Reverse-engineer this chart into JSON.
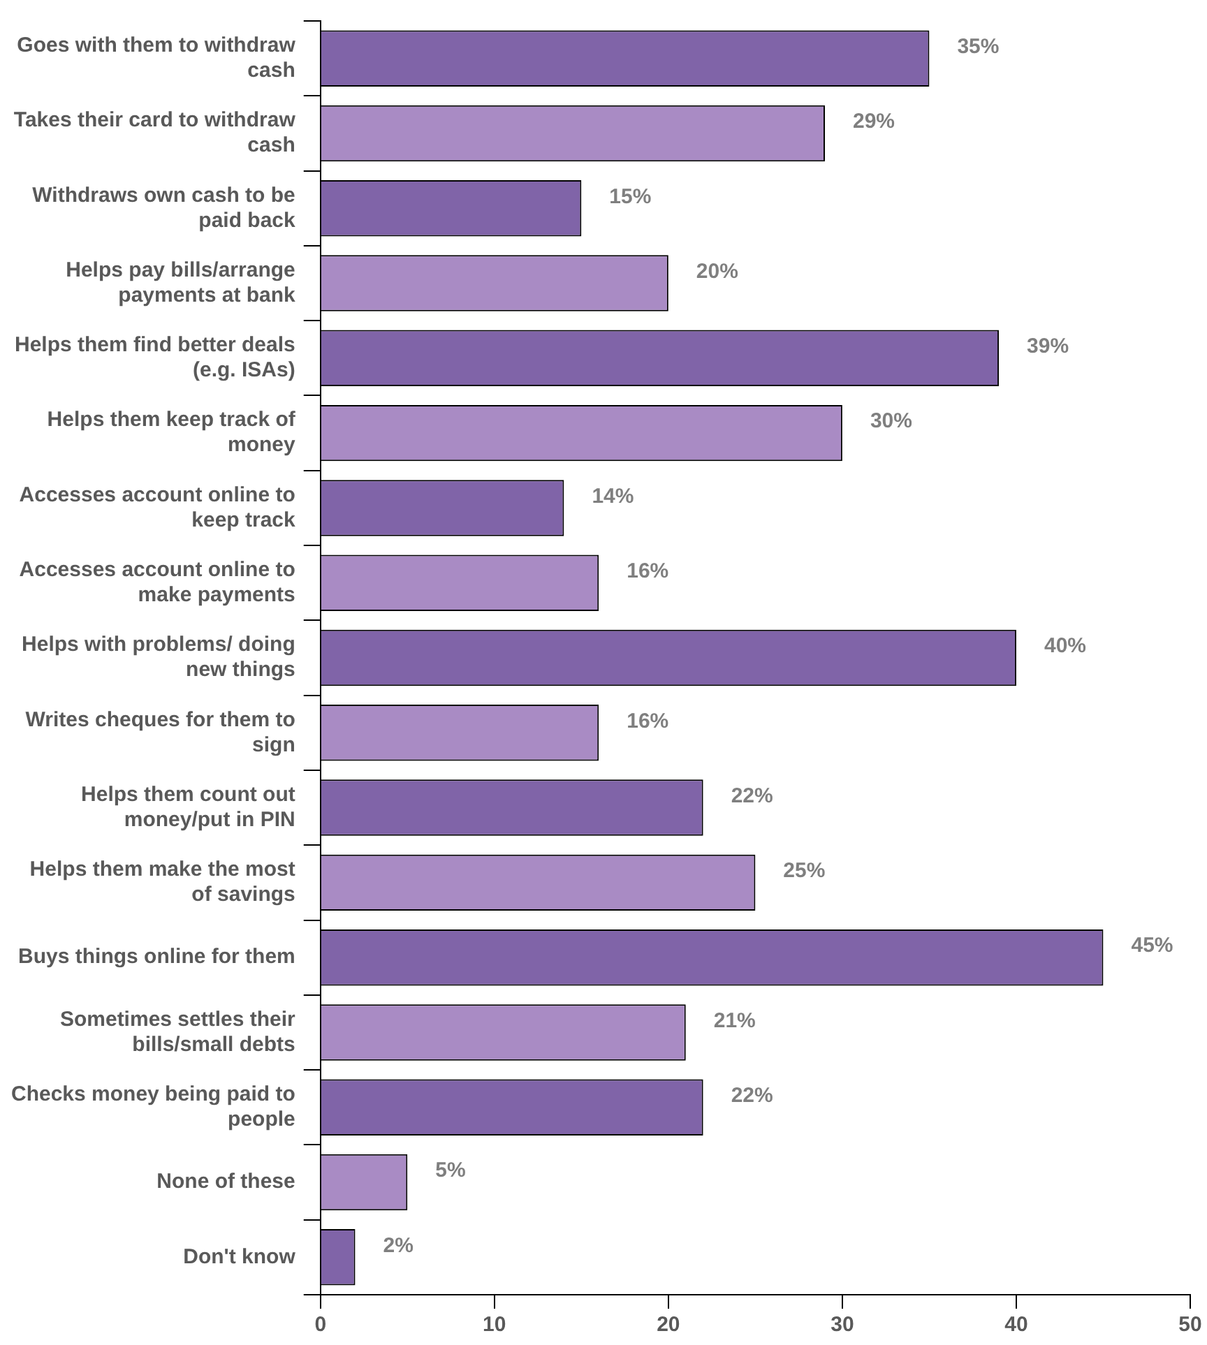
{
  "chart_data": {
    "type": "bar",
    "orientation": "horizontal",
    "categories": [
      "Goes with them to withdraw cash",
      "Takes their card to withdraw cash",
      "Withdraws own cash to be paid back",
      "Helps pay bills/arrange payments at bank",
      "Helps them find better deals (e.g. ISAs)",
      "Helps them keep track of money",
      "Accesses account online to keep track",
      "Accesses account online to make payments",
      "Helps with problems/ doing new things",
      "Writes cheques for them to sign",
      "Helps them count out money/put in PIN",
      "Helps them make the most of savings",
      "Buys things online for them",
      "Sometimes settles their bills/small debts",
      "Checks money being paid to people",
      "None of these",
      "Don't know"
    ],
    "values": [
      35,
      29,
      15,
      20,
      39,
      30,
      14,
      16,
      40,
      16,
      22,
      25,
      45,
      21,
      22,
      5,
      2
    ],
    "value_labels": [
      "35%",
      "29%",
      "15%",
      "20%",
      "39%",
      "30%",
      "14%",
      "16%",
      "40%",
      "16%",
      "22%",
      "25%",
      "45%",
      "21%",
      "22%",
      "5%",
      "2%"
    ],
    "colors": [
      "#8064a8",
      "#a98bc4",
      "#8064a8",
      "#a98bc4",
      "#8064a8",
      "#a98bc4",
      "#8064a8",
      "#a98bc4",
      "#8064a8",
      "#a98bc4",
      "#8064a8",
      "#a98bc4",
      "#8064a8",
      "#a98bc4",
      "#8064a8",
      "#a98bc4",
      "#8064a8"
    ],
    "xlim": [
      0,
      50
    ],
    "xticks": [
      0,
      10,
      20,
      30,
      40,
      50
    ],
    "grid": false,
    "legend": false
  }
}
